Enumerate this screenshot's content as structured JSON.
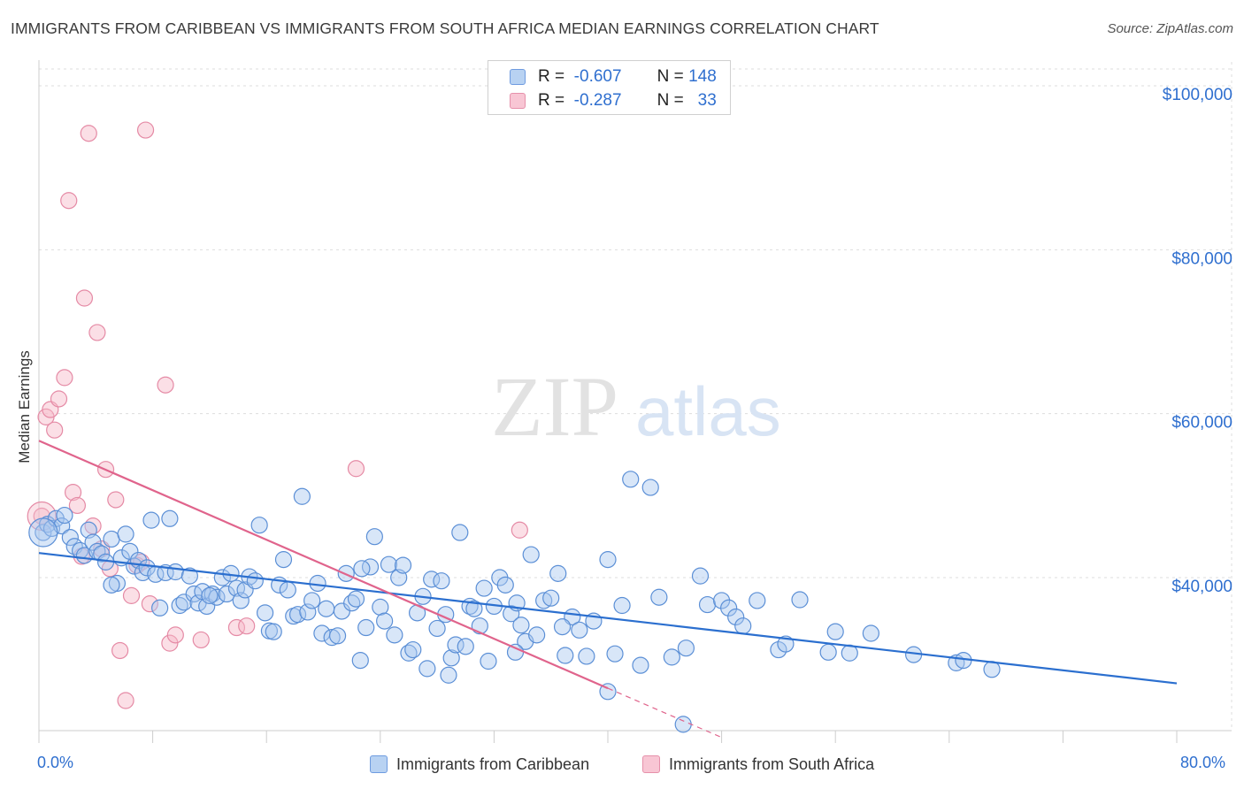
{
  "header": {
    "title": "IMMIGRANTS FROM CARIBBEAN VS IMMIGRANTS FROM SOUTH AFRICA MEDIAN EARNINGS CORRELATION CHART",
    "source": "Source: ZipAtlas.com"
  },
  "watermark": {
    "zip": "ZIP",
    "atlas": "atlas"
  },
  "legend_top": [
    {
      "r_label": "R =",
      "r_value": "-0.607",
      "n_label": "N =",
      "n_value": "148"
    },
    {
      "r_label": "R =",
      "r_value": "-0.287",
      "n_label": "N =",
      "n_value": "33"
    }
  ],
  "colors": {
    "caribbean_fill": "#a8c8f0",
    "caribbean_stroke": "#5b8fd6",
    "caribbean_line": "#2b6fcf",
    "south_africa_fill": "#f6b8c8",
    "south_africa_stroke": "#e58aa5",
    "south_africa_line": "#e0648c",
    "axis_label": "#2f6fcf",
    "grid": "#dddddd"
  },
  "chart_data": {
    "type": "scatter",
    "title": "IMMIGRANTS FROM CARIBBEAN VS IMMIGRANTS FROM SOUTH AFRICA MEDIAN EARNINGS CORRELATION CHART",
    "xlabel": "",
    "ylabel": "Median Earnings",
    "xlim": [
      0,
      80
    ],
    "ylim": [
      20000,
      102000
    ],
    "x_tick_labels": [
      "0.0%",
      "80.0%"
    ],
    "y_ticks": [
      40000,
      60000,
      80000,
      100000
    ],
    "y_tick_labels": [
      "$40,000",
      "$60,000",
      "$80,000",
      "$100,000"
    ],
    "grid": true,
    "legend_position": "bottom",
    "series": [
      {
        "name": "Immigrants from Caribbean",
        "r": -0.607,
        "n": 148,
        "trend": {
          "x": [
            0,
            80
          ],
          "y": [
            43000,
            27100
          ]
        },
        "points": [
          [
            0.3,
            45500
          ],
          [
            0.6,
            46500
          ],
          [
            0.9,
            46000
          ],
          [
            1.2,
            47200
          ],
          [
            1.6,
            46300
          ],
          [
            1.8,
            47600
          ],
          [
            2.2,
            44900
          ],
          [
            2.5,
            43800
          ],
          [
            2.9,
            43300
          ],
          [
            3.2,
            42700
          ],
          [
            3.5,
            45800
          ],
          [
            3.8,
            44300
          ],
          [
            4.1,
            43200
          ],
          [
            4.4,
            42900
          ],
          [
            4.7,
            41900
          ],
          [
            5.1,
            44700
          ],
          [
            5.5,
            39300
          ],
          [
            5.8,
            42400
          ],
          [
            6.1,
            45300
          ],
          [
            6.4,
            43200
          ],
          [
            6.7,
            41400
          ],
          [
            7.0,
            42100
          ],
          [
            7.3,
            40600
          ],
          [
            7.6,
            41200
          ],
          [
            7.9,
            47000
          ],
          [
            8.2,
            40400
          ],
          [
            8.5,
            36300
          ],
          [
            8.9,
            40600
          ],
          [
            9.2,
            47200
          ],
          [
            9.6,
            40700
          ],
          [
            9.9,
            36600
          ],
          [
            10.2,
            37000
          ],
          [
            10.6,
            40200
          ],
          [
            10.9,
            38000
          ],
          [
            11.2,
            36900
          ],
          [
            11.5,
            38300
          ],
          [
            11.8,
            36500
          ],
          [
            12.2,
            38000
          ],
          [
            12.5,
            37600
          ],
          [
            12.9,
            40000
          ],
          [
            13.2,
            38000
          ],
          [
            13.5,
            40500
          ],
          [
            13.9,
            38700
          ],
          [
            14.2,
            37200
          ],
          [
            14.5,
            38500
          ],
          [
            14.8,
            40100
          ],
          [
            15.2,
            39600
          ],
          [
            15.5,
            46400
          ],
          [
            15.9,
            35700
          ],
          [
            16.2,
            33500
          ],
          [
            16.5,
            33400
          ],
          [
            16.9,
            39100
          ],
          [
            17.2,
            42200
          ],
          [
            17.5,
            38500
          ],
          [
            17.9,
            35300
          ],
          [
            18.2,
            35500
          ],
          [
            18.5,
            49900
          ],
          [
            18.9,
            35800
          ],
          [
            19.2,
            37200
          ],
          [
            19.6,
            39300
          ],
          [
            19.9,
            33200
          ],
          [
            20.2,
            36200
          ],
          [
            20.6,
            32700
          ],
          [
            21.0,
            32900
          ],
          [
            21.3,
            35900
          ],
          [
            21.6,
            40500
          ],
          [
            22.0,
            36900
          ],
          [
            22.3,
            37400
          ],
          [
            22.6,
            29900
          ],
          [
            23.0,
            33900
          ],
          [
            23.3,
            41300
          ],
          [
            23.6,
            45000
          ],
          [
            24.0,
            36400
          ],
          [
            24.3,
            34700
          ],
          [
            24.6,
            41600
          ],
          [
            25.0,
            33000
          ],
          [
            25.3,
            40000
          ],
          [
            25.6,
            41500
          ],
          [
            26.0,
            30800
          ],
          [
            26.3,
            31200
          ],
          [
            26.6,
            35700
          ],
          [
            27.0,
            37700
          ],
          [
            27.3,
            28900
          ],
          [
            27.6,
            39800
          ],
          [
            28.0,
            33800
          ],
          [
            28.3,
            39600
          ],
          [
            28.6,
            35500
          ],
          [
            29.0,
            30200
          ],
          [
            29.3,
            31800
          ],
          [
            29.6,
            45500
          ],
          [
            30.0,
            31600
          ],
          [
            30.3,
            36500
          ],
          [
            30.6,
            36200
          ],
          [
            31.0,
            34100
          ],
          [
            31.3,
            38700
          ],
          [
            31.6,
            29800
          ],
          [
            32.0,
            36500
          ],
          [
            32.4,
            40000
          ],
          [
            32.8,
            39100
          ],
          [
            33.2,
            35600
          ],
          [
            33.6,
            36900
          ],
          [
            33.9,
            34200
          ],
          [
            34.2,
            32200
          ],
          [
            34.6,
            42800
          ],
          [
            35.0,
            33000
          ],
          [
            35.5,
            37200
          ],
          [
            36.0,
            37500
          ],
          [
            36.5,
            40500
          ],
          [
            37.0,
            30500
          ],
          [
            37.5,
            35200
          ],
          [
            38.0,
            33600
          ],
          [
            38.5,
            30400
          ],
          [
            39.0,
            34700
          ],
          [
            40.0,
            42200
          ],
          [
            40.5,
            30700
          ],
          [
            41.0,
            36600
          ],
          [
            41.6,
            52000
          ],
          [
            42.3,
            29300
          ],
          [
            43.0,
            51000
          ],
          [
            43.6,
            37600
          ],
          [
            44.5,
            30300
          ],
          [
            45.5,
            31400
          ],
          [
            46.5,
            40200
          ],
          [
            47.0,
            36700
          ],
          [
            48.0,
            37200
          ],
          [
            48.5,
            36300
          ],
          [
            49.0,
            35200
          ],
          [
            49.5,
            34100
          ],
          [
            50.5,
            37200
          ],
          [
            52.0,
            31200
          ],
          [
            52.5,
            31900
          ],
          [
            53.5,
            37300
          ],
          [
            55.5,
            30900
          ],
          [
            56.0,
            33400
          ],
          [
            57.0,
            30800
          ],
          [
            58.5,
            33200
          ],
          [
            61.5,
            30600
          ],
          [
            64.5,
            29600
          ],
          [
            65.0,
            29900
          ],
          [
            67.0,
            28800
          ],
          [
            40.0,
            26100
          ],
          [
            45.3,
            22100
          ],
          [
            28.8,
            28100
          ],
          [
            36.8,
            34000
          ],
          [
            33.5,
            30900
          ],
          [
            22.7,
            41100
          ],
          [
            12.0,
            37800
          ],
          [
            5.1,
            39100
          ]
        ]
      },
      {
        "name": "Immigrants from South Africa",
        "r": -0.287,
        "n": 33,
        "trend": {
          "x": [
            0,
            40
          ],
          "y": [
            56700,
            26500
          ]
        },
        "trend_dashed": {
          "x": [
            40,
            48
          ],
          "y": [
            26500,
            20500
          ]
        },
        "points": [
          [
            0.2,
            47500
          ],
          [
            0.5,
            59600
          ],
          [
            0.8,
            60500
          ],
          [
            1.1,
            58000
          ],
          [
            1.4,
            61800
          ],
          [
            1.8,
            64400
          ],
          [
            2.1,
            86000
          ],
          [
            2.4,
            50400
          ],
          [
            2.7,
            48800
          ],
          [
            3.0,
            42600
          ],
          [
            3.2,
            74100
          ],
          [
            3.5,
            94200
          ],
          [
            3.8,
            46300
          ],
          [
            4.1,
            69900
          ],
          [
            4.4,
            43500
          ],
          [
            4.7,
            53200
          ],
          [
            5.0,
            41100
          ],
          [
            5.4,
            49500
          ],
          [
            5.7,
            31100
          ],
          [
            6.1,
            25000
          ],
          [
            6.5,
            37800
          ],
          [
            6.9,
            41500
          ],
          [
            7.2,
            41900
          ],
          [
            7.5,
            94600
          ],
          [
            7.8,
            36800
          ],
          [
            8.9,
            63500
          ],
          [
            9.2,
            32000
          ],
          [
            9.6,
            33000
          ],
          [
            11.4,
            32400
          ],
          [
            13.9,
            33900
          ],
          [
            14.6,
            34100
          ],
          [
            22.3,
            53300
          ],
          [
            33.8,
            45800
          ]
        ]
      }
    ]
  },
  "legend_bottom": {
    "items": [
      "Immigrants from Caribbean",
      "Immigrants from South Africa"
    ]
  }
}
